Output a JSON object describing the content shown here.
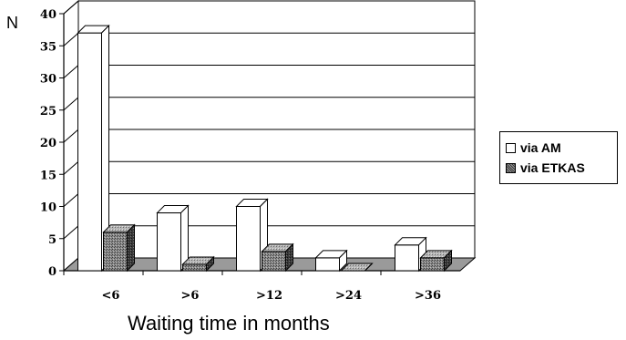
{
  "chart_data": {
    "type": "bar",
    "title": "",
    "xlabel": "Waiting time in months",
    "ylabel": "N",
    "categories": [
      "<6",
      ">6",
      ">12",
      ">24",
      ">36"
    ],
    "series": [
      {
        "name": "via AM",
        "values": [
          37,
          9,
          10,
          2,
          4
        ],
        "color": "#ffffff"
      },
      {
        "name": "via ETKAS",
        "values": [
          6,
          1,
          3,
          0,
          2
        ],
        "color": "#666666"
      }
    ],
    "ylim": [
      0,
      40
    ],
    "yticks": [
      "0",
      "5",
      "10",
      "15",
      "20",
      "25",
      "30",
      "35",
      "40"
    ],
    "grid": true,
    "legend": "right",
    "style": "3d-clustered-bar"
  }
}
